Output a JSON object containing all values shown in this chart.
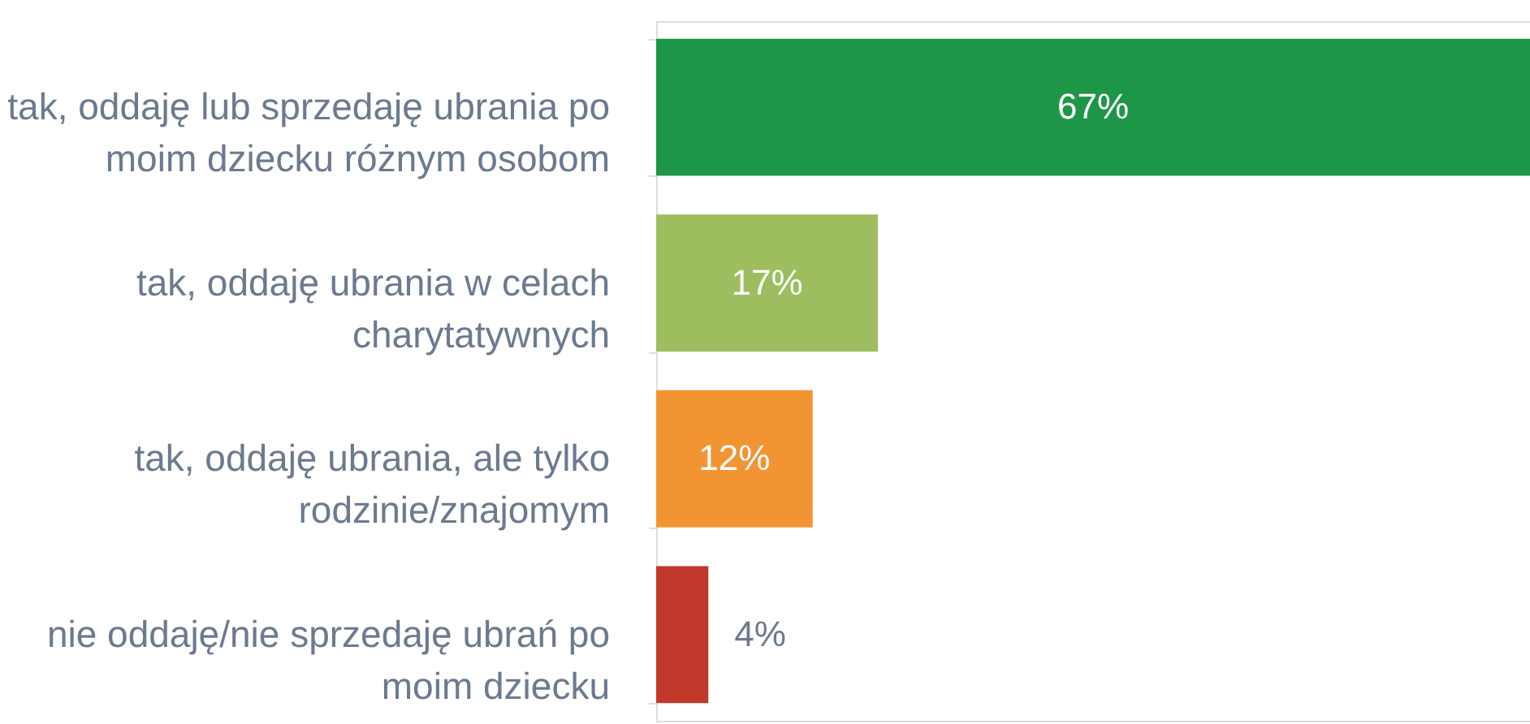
{
  "chart_data": {
    "type": "bar",
    "orientation": "horizontal",
    "value_labels": [
      "67%",
      "17%",
      "12%",
      "4%"
    ],
    "categories": [
      "tak, oddaję lub sprzedaję ubrania po moim dziecku różnym osobom",
      "tak, oddaję ubrania w celach charytatywnych",
      "tak, oddaję ubrania, ale tylko rodzinie/znajomym",
      "nie oddaję/nie sprzedaję ubrań po moim dziecku"
    ],
    "values": [
      67,
      17,
      12,
      4
    ],
    "colors": [
      "#1e9647",
      "#9dbd5e",
      "#f39433",
      "#c0392b"
    ],
    "grid": false
  }
}
